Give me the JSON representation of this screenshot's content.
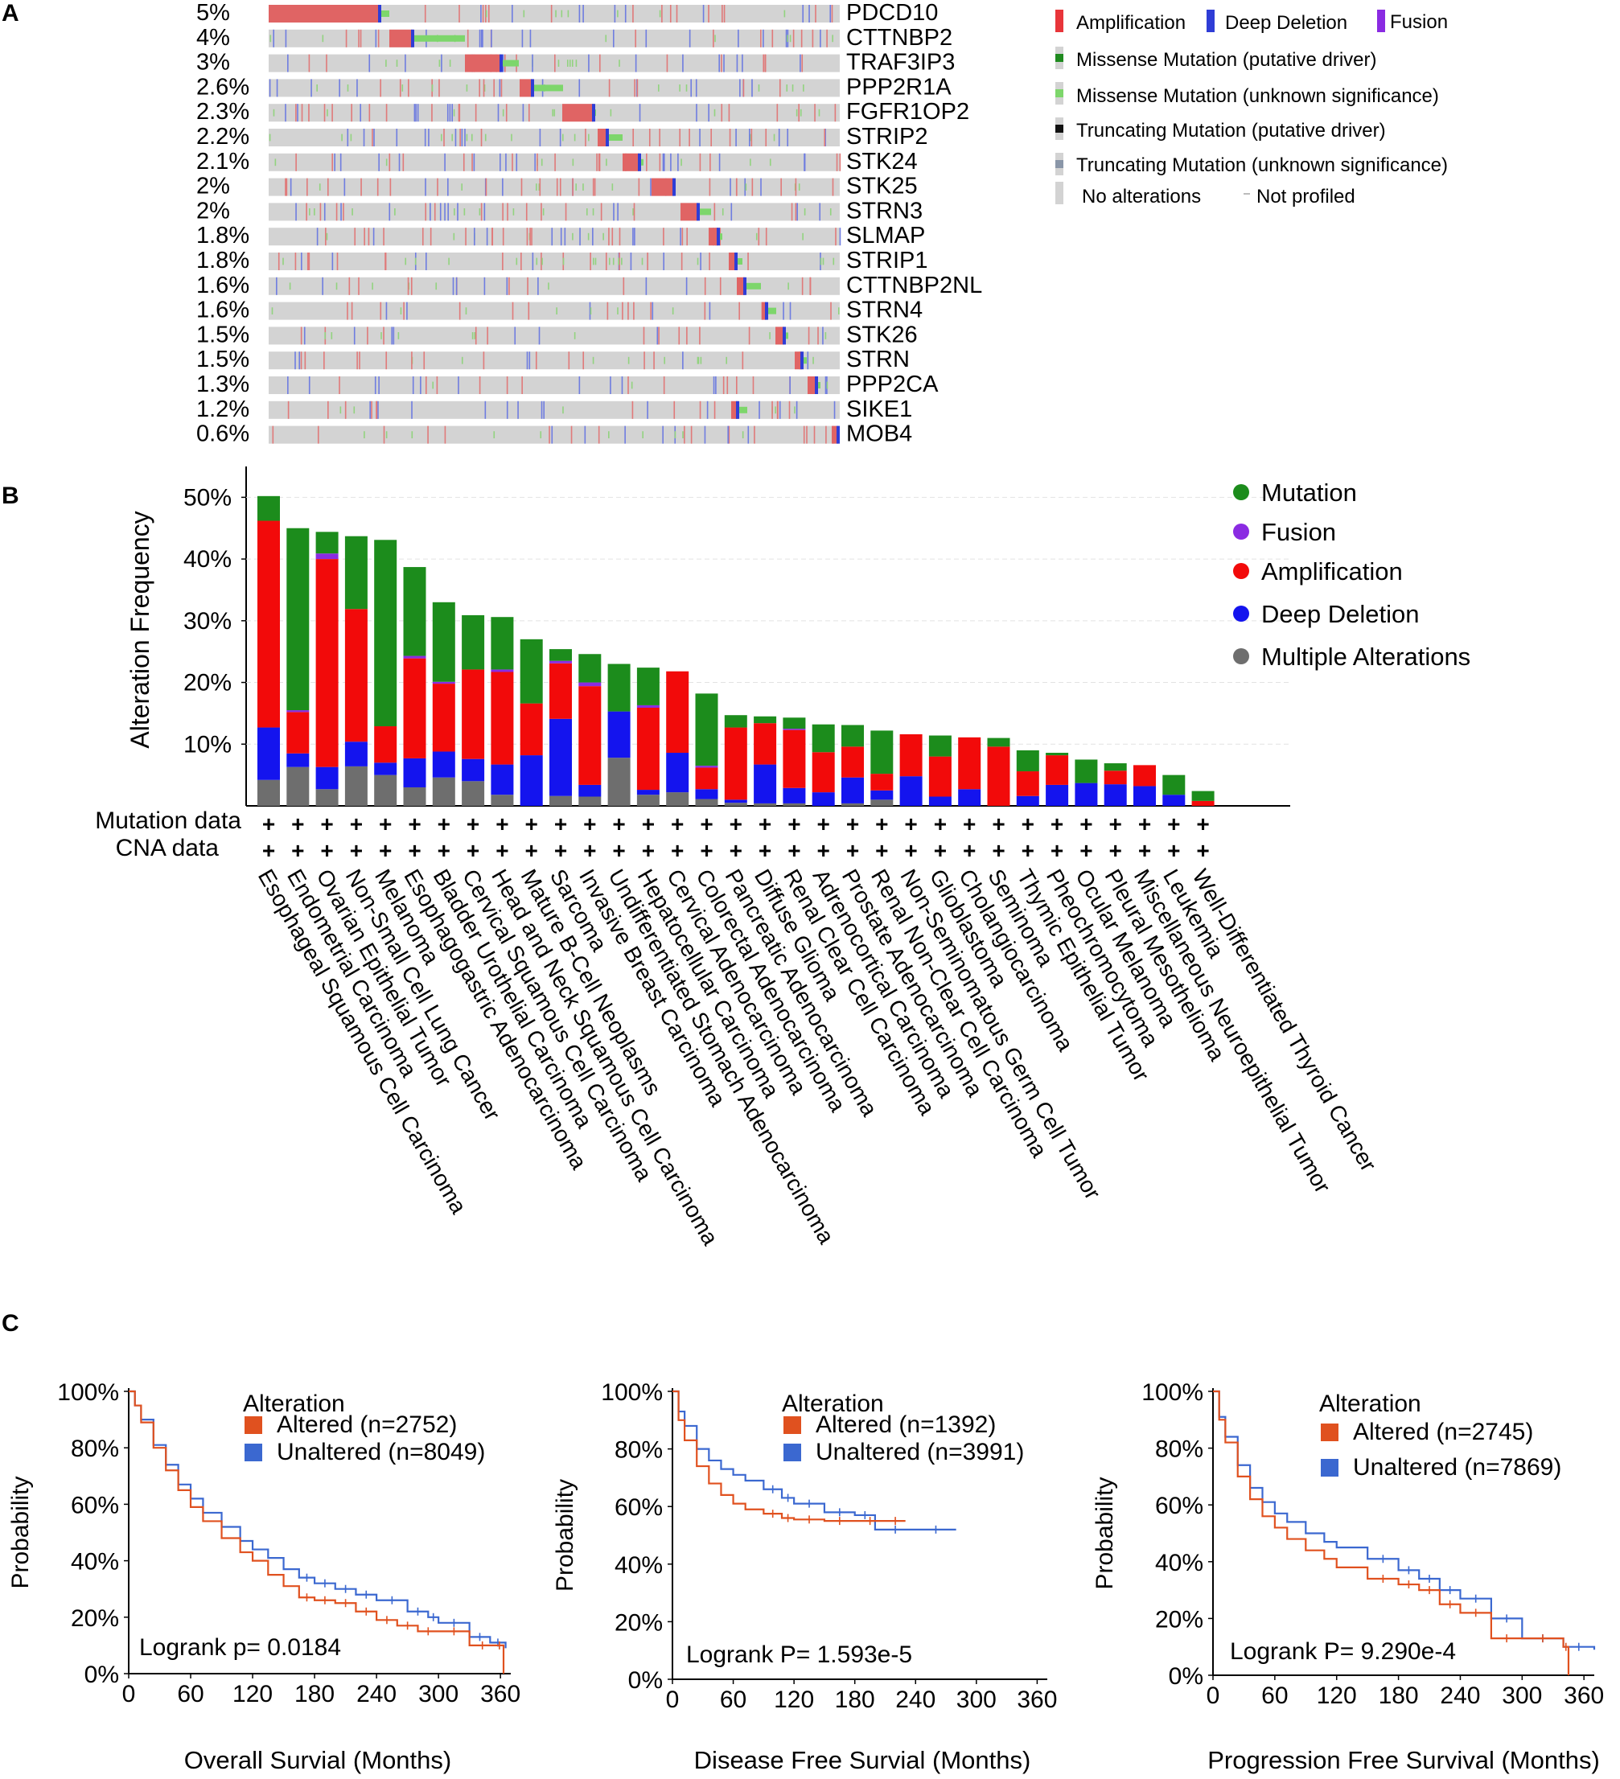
{
  "panel_labels": [
    "A",
    "B",
    "C"
  ],
  "colors": {
    "amplification": "#e8353a",
    "amp_bar": "#e06464",
    "deep_deletion": "#2f3dd6",
    "fusion": "#8a2be2",
    "missense_driver": "#1f8a1f",
    "missense_unknown": "#7dd66b",
    "truncating_driver": "#111111",
    "truncating_unknown": "#8a96a8",
    "no_alteration": "#d3d3d3",
    "not_profiled": "#bbbbbb",
    "mutation_bar": "#1c8c1c",
    "amp_stack": "#f20a0a",
    "del_stack": "#1414ee",
    "multiple": "#6e6e6e",
    "altered_curve": "#e0511f",
    "unaltered_curve": "#3b68d0"
  },
  "panel_a": {
    "genes": [
      {
        "name": "PDCD10",
        "pct": "5%"
      },
      {
        "name": "CTTNBP2",
        "pct": "4%"
      },
      {
        "name": "TRAF3IP3",
        "pct": "3%"
      },
      {
        "name": "PPP2R1A",
        "pct": "2.6%"
      },
      {
        "name": "FGFR1OP2",
        "pct": "2.3%"
      },
      {
        "name": "STRIP2",
        "pct": "2.2%"
      },
      {
        "name": "STK24",
        "pct": "2.1%"
      },
      {
        "name": "STK25",
        "pct": "2%"
      },
      {
        "name": "STRN3",
        "pct": "2%"
      },
      {
        "name": "SLMAP",
        "pct": "1.8%"
      },
      {
        "name": "STRIP1",
        "pct": "1.8%"
      },
      {
        "name": "CTTNBP2NL",
        "pct": "1.6%"
      },
      {
        "name": "STRN4",
        "pct": "1.6%"
      },
      {
        "name": "STK26",
        "pct": "1.5%"
      },
      {
        "name": "STRN",
        "pct": "1.5%"
      },
      {
        "name": "PPP2CA",
        "pct": "1.3%"
      },
      {
        "name": "SIKE1",
        "pct": "1.2%"
      },
      {
        "name": "MOB4",
        "pct": "0.6%"
      }
    ],
    "legend": [
      "Amplification",
      "Deep Deletion",
      "Fusion",
      "Missense Mutation (putative driver)",
      "Missense Mutation (unknown significance)",
      "Truncating Mutation (putative driver)",
      "Truncating Mutation (unknown significance)",
      "No alterations",
      "Not profiled"
    ]
  },
  "chart_data": [
    {
      "type": "bar",
      "title": "",
      "ylabel": "Alteration Frequency",
      "ylim": [
        0,
        55
      ],
      "yticks": [
        "10%",
        "20%",
        "30%",
        "40%",
        "50%"
      ],
      "row_labels": [
        "Mutation data",
        "CNA data"
      ],
      "row_marker": "+",
      "categories": [
        "Esophageal Squamous Cell Carcinoma",
        "Endometrial Carcinoma",
        "Ovarian Epithelial Tumor",
        "Non-Small Cell Lung Cancer",
        "Melanoma",
        "Esophagogastric Adenocarcinoma",
        "Bladder Urothelial Carcinoma",
        "Cervical Squamous Cell Carcinoma",
        "Head and Neck Squamous Cell Carcinoma",
        "Mature B-Cell Neoplasms",
        "Sarcoma",
        "Invasive Breast Carcinoma",
        "Undifferentiated Stomach Adenocarcinoma",
        "Hepatocellular Carcinoma",
        "Cervical Adenocarcinoma",
        "Colorectal Adenocarcinoma",
        "Pancreatic Adenocarcinoma",
        "Diffuse Glioma",
        "Renal Clear Cell Carcinoma",
        "Adrenocortical Carcinoma",
        "Prostate Adenocarcinoma",
        "Renal Non-Clear Cell Carcinoma",
        "Non-Seminomatous Germ Cell Tumor",
        "Glioblastoma",
        "Cholangiocarcinoma",
        "Seminoma",
        "Thymic Epithelial Tumor",
        "Pheochromocytoma",
        "Ocular Melanoma",
        "Pleural Mesothelioma",
        "Miscellaneous Neuroepithelial Tumor",
        "Leukemia",
        "Well-Differentiated Thyroid Cancer"
      ],
      "series": [
        {
          "name": "Multiple Alterations",
          "values": [
            4.2,
            6.3,
            2.7,
            6.4,
            5.0,
            3.0,
            4.6,
            4.0,
            1.8,
            0,
            1.6,
            1.5,
            7.8,
            1.8,
            2.2,
            1.1,
            0.5,
            0.4,
            0.4,
            0,
            0.4,
            1.0,
            0,
            0,
            0,
            0,
            0,
            0,
            0,
            0,
            0,
            0,
            0
          ]
        },
        {
          "name": "Deep Deletion",
          "values": [
            8.5,
            2.2,
            3.6,
            4.0,
            2.0,
            4.7,
            4.2,
            3.6,
            4.9,
            8.2,
            12.5,
            1.9,
            7.5,
            0.8,
            6.4,
            1.6,
            0.5,
            6.3,
            2.5,
            2.2,
            4.2,
            1.5,
            4.8,
            1.5,
            2.7,
            0,
            1.6,
            3.4,
            3.7,
            3.5,
            3.2,
            1.8,
            0
          ]
        },
        {
          "name": "Amplification",
          "values": [
            33.5,
            6.7,
            33.7,
            21.5,
            5.9,
            16.2,
            11.0,
            14.5,
            15.0,
            8.4,
            9.0,
            16.0,
            0,
            13.3,
            13.2,
            3.5,
            11.7,
            6.7,
            9.4,
            6.5,
            5.0,
            2.7,
            6.8,
            6.5,
            8.4,
            9.6,
            4.0,
            4.8,
            0,
            2.2,
            3.4,
            0,
            0.8
          ]
        },
        {
          "name": "Fusion",
          "values": [
            0,
            0.3,
            0.9,
            0,
            0,
            0.4,
            0.3,
            0,
            0.4,
            0,
            0.4,
            0.6,
            0,
            0.4,
            0,
            0.3,
            0,
            0,
            0.2,
            0,
            0,
            0,
            0,
            0,
            0,
            0,
            0,
            0,
            0,
            0,
            0,
            0,
            0
          ]
        },
        {
          "name": "Mutation",
          "values": [
            4.0,
            29.5,
            3.5,
            11.8,
            30.2,
            14.4,
            12.9,
            8.8,
            8.5,
            10.4,
            1.9,
            4.6,
            7.7,
            6.1,
            0,
            11.7,
            2.0,
            1.1,
            1.8,
            4.5,
            3.5,
            7.0,
            0,
            3.4,
            0,
            1.4,
            3.4,
            0.4,
            3.8,
            1.2,
            0,
            3.2,
            1.6
          ]
        }
      ],
      "legend": [
        "Mutation",
        "Fusion",
        "Amplification",
        "Deep Deletion",
        "Multiple Alterations"
      ]
    },
    {
      "type": "line",
      "title": "",
      "xlabel": "Overall Survial (Months)",
      "ylabel": "Probability",
      "xlim": [
        0,
        370
      ],
      "ylim": [
        0,
        1
      ],
      "xticks": [
        "0",
        "60",
        "120",
        "180",
        "240",
        "300",
        "360"
      ],
      "yticks": [
        "0%",
        "20%",
        "40%",
        "60%",
        "80%",
        "100%"
      ],
      "legend_title": "Alteration",
      "annotation": "Logrank p= 0.0184",
      "series": [
        {
          "name": "Altered (n=2752)",
          "x": [
            0,
            6,
            12,
            24,
            36,
            48,
            60,
            72,
            90,
            108,
            120,
            135,
            150,
            165,
            180,
            200,
            220,
            240,
            260,
            280,
            300,
            330,
            355,
            363
          ],
          "y": [
            1,
            0.95,
            0.89,
            0.8,
            0.72,
            0.65,
            0.59,
            0.54,
            0.48,
            0.43,
            0.4,
            0.35,
            0.31,
            0.27,
            0.26,
            0.25,
            0.22,
            0.19,
            0.17,
            0.15,
            0.15,
            0.1,
            0.1,
            0
          ]
        },
        {
          "name": "Unaltered (n=8049)",
          "x": [
            0,
            6,
            12,
            24,
            36,
            48,
            60,
            72,
            90,
            108,
            120,
            135,
            150,
            165,
            180,
            200,
            220,
            240,
            270,
            290,
            300,
            330,
            350,
            365
          ],
          "y": [
            1,
            0.95,
            0.9,
            0.81,
            0.74,
            0.67,
            0.62,
            0.57,
            0.52,
            0.47,
            0.44,
            0.41,
            0.37,
            0.34,
            0.32,
            0.3,
            0.28,
            0.26,
            0.22,
            0.2,
            0.18,
            0.13,
            0.11,
            0.09
          ]
        }
      ]
    },
    {
      "type": "line",
      "title": "",
      "xlabel": "Disease Free Survial (Months)",
      "ylabel": "Probability",
      "xlim": [
        0,
        370
      ],
      "ylim": [
        0,
        1
      ],
      "xticks": [
        "0",
        "60",
        "120",
        "180",
        "240",
        "300",
        "360"
      ],
      "yticks": [
        "0%",
        "20%",
        "40%",
        "60%",
        "80%",
        "100%"
      ],
      "legend_title": "Alteration",
      "annotation": "Logrank P= 1.593e-5",
      "series": [
        {
          "name": "Altered (n=1392)",
          "x": [
            0,
            6,
            12,
            24,
            36,
            48,
            60,
            72,
            90,
            108,
            120,
            150,
            180,
            210,
            230
          ],
          "y": [
            1,
            0.9,
            0.83,
            0.74,
            0.68,
            0.64,
            0.61,
            0.59,
            0.575,
            0.56,
            0.555,
            0.55,
            0.55,
            0.55,
            0.55
          ]
        },
        {
          "name": "Unaltered (n=3991)",
          "x": [
            0,
            6,
            12,
            24,
            36,
            48,
            60,
            72,
            90,
            108,
            120,
            150,
            180,
            200,
            240,
            280
          ],
          "y": [
            1,
            0.93,
            0.88,
            0.8,
            0.76,
            0.73,
            0.71,
            0.69,
            0.66,
            0.63,
            0.61,
            0.58,
            0.57,
            0.52,
            0.52,
            0.52
          ]
        }
      ]
    },
    {
      "type": "line",
      "title": "",
      "xlabel": "Progression Free Survival (Months)",
      "ylabel": "Probability",
      "xlim": [
        0,
        370
      ],
      "ylim": [
        0,
        1
      ],
      "xticks": [
        "0",
        "60",
        "120",
        "180",
        "240",
        "300",
        "360"
      ],
      "yticks": [
        "0%",
        "20%",
        "40%",
        "60%",
        "80%",
        "100%"
      ],
      "legend_title": "Alteration",
      "annotation": "Logrank P= 9.290e-4",
      "series": [
        {
          "name": "Altered (n=2745)",
          "x": [
            0,
            6,
            12,
            24,
            36,
            48,
            60,
            72,
            90,
            108,
            120,
            150,
            180,
            200,
            220,
            240,
            270,
            300,
            340,
            345
          ],
          "y": [
            1,
            0.9,
            0.82,
            0.7,
            0.62,
            0.56,
            0.52,
            0.48,
            0.44,
            0.41,
            0.38,
            0.34,
            0.32,
            0.3,
            0.25,
            0.22,
            0.13,
            0.13,
            0.1,
            0
          ]
        },
        {
          "name": "Unaltered (n=7869)",
          "x": [
            0,
            6,
            12,
            24,
            36,
            48,
            60,
            72,
            90,
            108,
            120,
            150,
            180,
            200,
            220,
            240,
            270,
            300,
            340,
            370
          ],
          "y": [
            1,
            0.91,
            0.84,
            0.74,
            0.66,
            0.61,
            0.57,
            0.54,
            0.5,
            0.47,
            0.45,
            0.41,
            0.37,
            0.34,
            0.3,
            0.27,
            0.2,
            0.13,
            0.1,
            0.09
          ]
        }
      ]
    }
  ]
}
